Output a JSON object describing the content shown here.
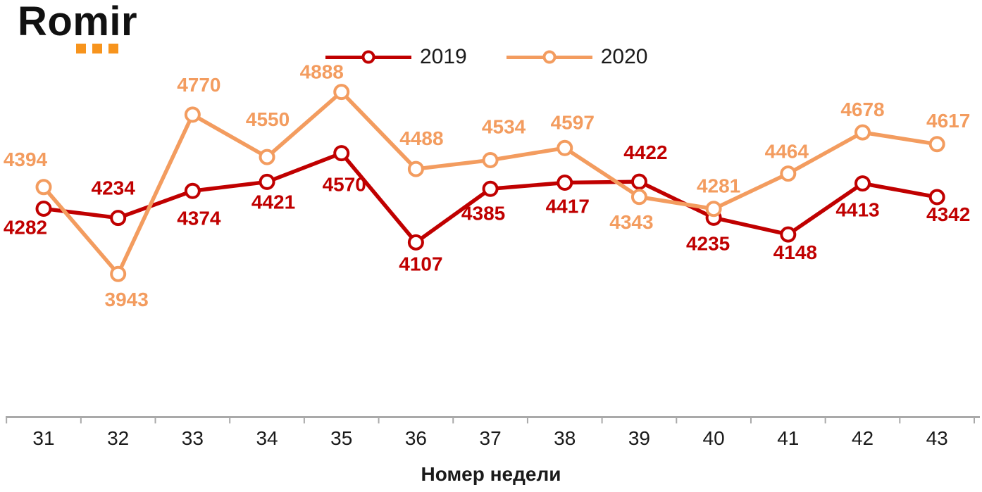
{
  "logo": {
    "text": "Romir",
    "dots_color": "#F7941D"
  },
  "legend": [
    {
      "label": "2019",
      "color": "#C00000"
    },
    {
      "label": "2020",
      "color": "#F39C5F"
    }
  ],
  "chart_data": {
    "type": "line",
    "x": [
      31,
      32,
      33,
      34,
      35,
      36,
      37,
      38,
      39,
      40,
      41,
      42,
      43
    ],
    "xlabel": "Номер недели",
    "ylim": [
      3200,
      5000
    ],
    "grid": false,
    "legend_position": "top-center",
    "data_labels": true,
    "marker": "open-circle",
    "axis_color": "#A9A9A9",
    "tick_label_color": "#1a1a1a",
    "series": [
      {
        "name": "2019",
        "color": "#C00000",
        "values": [
          4282,
          4234,
          4374,
          4421,
          4570,
          4107,
          4385,
          4417,
          4422,
          4235,
          4148,
          4413,
          4342
        ]
      },
      {
        "name": "2020",
        "color": "#F39C5F",
        "values": [
          4394,
          3943,
          4770,
          4550,
          4888,
          4488,
          4534,
          4597,
          4343,
          4281,
          4464,
          4678,
          4617
        ]
      }
    ]
  }
}
